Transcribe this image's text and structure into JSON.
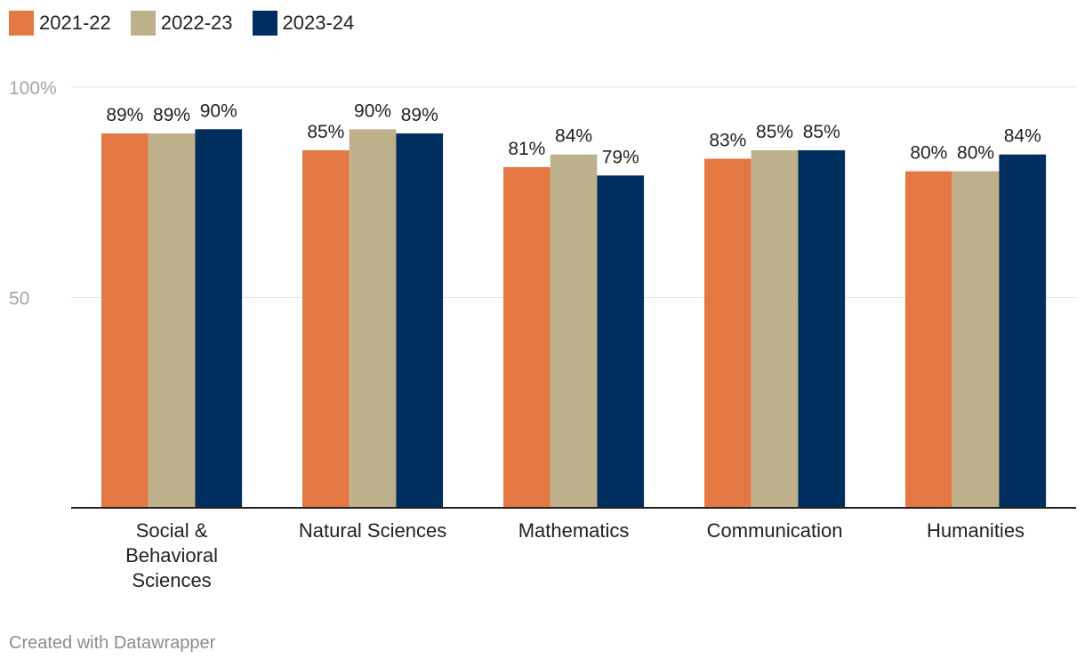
{
  "chart_data": {
    "type": "bar",
    "categories": [
      [
        "Social &",
        "Behavioral",
        "Sciences"
      ],
      [
        "Natural Sciences"
      ],
      [
        "Mathematics"
      ],
      [
        "Communication"
      ],
      [
        "Humanities"
      ]
    ],
    "series": [
      {
        "name": "2021-22",
        "color": "#e37843",
        "values": [
          89,
          85,
          81,
          83,
          80
        ]
      },
      {
        "name": "2022-23",
        "color": "#bfb08c",
        "values": [
          89,
          90,
          84,
          85,
          80
        ]
      },
      {
        "name": "2023-24",
        "color": "#002e5f",
        "values": [
          90,
          89,
          79,
          85,
          84
        ]
      }
    ],
    "value_suffix": "%",
    "y_ticks": [
      {
        "value": 100,
        "label": "100%"
      },
      {
        "value": 50,
        "label": "50"
      }
    ],
    "ylim": [
      0,
      100
    ]
  },
  "credit": "Created with Datawrapper"
}
